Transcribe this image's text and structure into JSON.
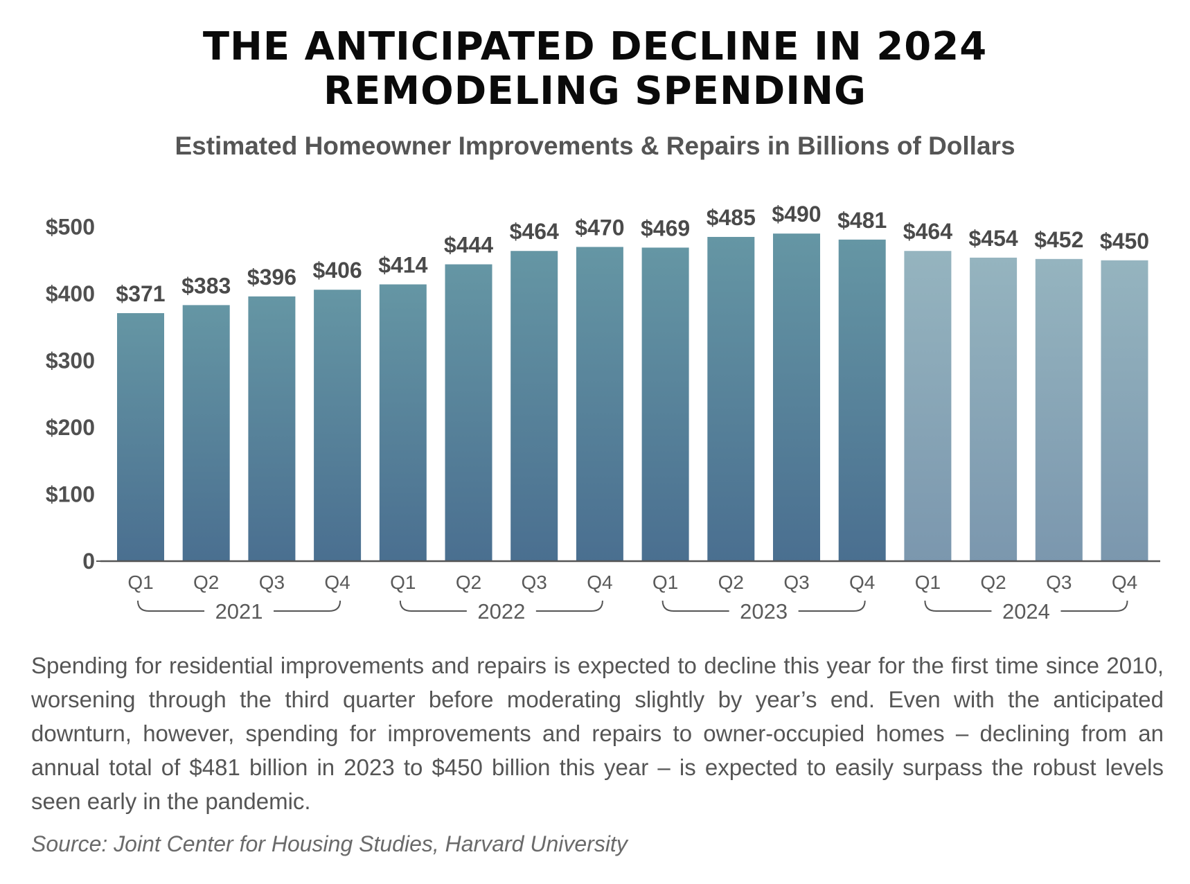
{
  "title_line1": "THE ANTICIPATED DECLINE IN 2024",
  "title_line2": "REMODELING SPENDING",
  "subtitle": "Estimated Homeowner Improvements & Repairs in Billions of Dollars",
  "body": "Spending for residential improvements and repairs is expected to decline this year for the first time since 2010, worsening through the third quarter before moderating slightly by year’s end. Even with the anticipated downturn, however, spending for improvements and repairs to owner-occupied homes – declining from an annual total of $481 billion in 2023 to $450 billion this year – is expected to easily surpass the robust levels seen early in the pandemic.",
  "source": "Source: Joint Center for Housing Studies, Harvard University",
  "colors": {
    "bar_actual_top": "#6596a4",
    "bar_actual_bottom": "#4a6f90",
    "bar_projected_top": "#95b4bf",
    "bar_projected_bottom": "#7b97ae",
    "axis": "#555555"
  },
  "chart_data": {
    "type": "bar",
    "title": "THE ANTICIPATED DECLINE IN 2024 REMODELING SPENDING",
    "subtitle": "Estimated Homeowner Improvements & Repairs in Billions of Dollars",
    "xlabel": "",
    "ylabel": "",
    "ylim": [
      0,
      500
    ],
    "yticks": [
      0,
      100,
      200,
      300,
      400,
      500
    ],
    "ytick_labels": [
      "0",
      "$100",
      "$200",
      "$300",
      "$400",
      "$500"
    ],
    "grid": false,
    "categories": [
      "Q1",
      "Q2",
      "Q3",
      "Q4",
      "Q1",
      "Q2",
      "Q3",
      "Q4",
      "Q1",
      "Q2",
      "Q3",
      "Q4",
      "Q1",
      "Q2",
      "Q3",
      "Q4"
    ],
    "groups": [
      {
        "label": "2021",
        "count": 4
      },
      {
        "label": "2022",
        "count": 4
      },
      {
        "label": "2023",
        "count": 4
      },
      {
        "label": "2024",
        "count": 4
      }
    ],
    "values": [
      371,
      383,
      396,
      406,
      414,
      444,
      464,
      470,
      469,
      485,
      490,
      481,
      464,
      454,
      452,
      450
    ],
    "data_labels": [
      "$371",
      "$383",
      "$396",
      "$406",
      "$414",
      "$444",
      "$464",
      "$470",
      "$469",
      "$485",
      "$490",
      "$481",
      "$464",
      "$454",
      "$452",
      "$450"
    ],
    "projected": [
      false,
      false,
      false,
      false,
      false,
      false,
      false,
      false,
      false,
      false,
      false,
      false,
      true,
      true,
      true,
      true
    ]
  }
}
